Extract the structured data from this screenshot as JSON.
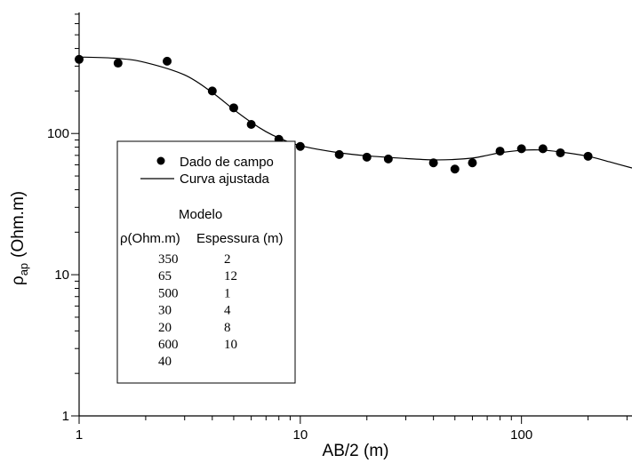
{
  "chart_data": {
    "type": "scatter",
    "xscale": "log",
    "yscale": "log",
    "xlim": [
      1,
      316
    ],
    "ylim": [
      1,
      720
    ],
    "xlabel": "AB/2 (m)",
    "ylabel": {
      "symbol": "ρ",
      "sub": "ap",
      "unit": "(Ohm.m)"
    },
    "x_tick_labels": [
      {
        "value": 1,
        "label": "1"
      },
      {
        "value": 10,
        "label": "10"
      },
      {
        "value": 100,
        "label": "100"
      }
    ],
    "y_tick_labels": [
      {
        "value": 1,
        "label": "1"
      },
      {
        "value": 10,
        "label": "10"
      },
      {
        "value": 100,
        "label": "100"
      }
    ],
    "series": [
      {
        "name": "Dado de campo",
        "style": "filled-circle",
        "points": [
          {
            "x": 1,
            "y": 335
          },
          {
            "x": 1.5,
            "y": 315
          },
          {
            "x": 2.5,
            "y": 325
          },
          {
            "x": 4,
            "y": 200
          },
          {
            "x": 5,
            "y": 152
          },
          {
            "x": 6,
            "y": 116
          },
          {
            "x": 8,
            "y": 91
          },
          {
            "x": 10,
            "y": 81
          },
          {
            "x": 15,
            "y": 71
          },
          {
            "x": 20,
            "y": 68
          },
          {
            "x": 25,
            "y": 66
          },
          {
            "x": 40,
            "y": 62
          },
          {
            "x": 50,
            "y": 56
          },
          {
            "x": 60,
            "y": 62
          },
          {
            "x": 80,
            "y": 75
          },
          {
            "x": 100,
            "y": 78
          },
          {
            "x": 125,
            "y": 78
          },
          {
            "x": 150,
            "y": 73
          },
          {
            "x": 200,
            "y": 69
          }
        ]
      },
      {
        "name": "Curva ajustada",
        "style": "line",
        "points": [
          {
            "x": 1,
            "y": 348
          },
          {
            "x": 1.5,
            "y": 340
          },
          {
            "x": 2,
            "y": 318
          },
          {
            "x": 3,
            "y": 260
          },
          {
            "x": 4,
            "y": 195
          },
          {
            "x": 5,
            "y": 148
          },
          {
            "x": 6,
            "y": 120
          },
          {
            "x": 7,
            "y": 103
          },
          {
            "x": 8,
            "y": 93
          },
          {
            "x": 10,
            "y": 82
          },
          {
            "x": 15,
            "y": 73
          },
          {
            "x": 20,
            "y": 69.5
          },
          {
            "x": 30,
            "y": 66.5
          },
          {
            "x": 40,
            "y": 65
          },
          {
            "x": 50,
            "y": 65.5
          },
          {
            "x": 60,
            "y": 67
          },
          {
            "x": 70,
            "y": 70
          },
          {
            "x": 80,
            "y": 73
          },
          {
            "x": 100,
            "y": 76
          },
          {
            "x": 120,
            "y": 76.5
          },
          {
            "x": 150,
            "y": 74
          },
          {
            "x": 200,
            "y": 69
          },
          {
            "x": 250,
            "y": 63
          },
          {
            "x": 316,
            "y": 57
          }
        ]
      }
    ],
    "legend": {
      "placement": "lower-left",
      "entries": [
        {
          "label": "Dado de campo",
          "style": "filled-circle"
        },
        {
          "label": "Curva ajustada",
          "style": "line"
        }
      ],
      "model": {
        "title": "Modelo",
        "headers": [
          "ρ(Ohm.m)",
          "Espessura (m)"
        ],
        "rows": [
          [
            "350",
            "2"
          ],
          [
            "65",
            "12"
          ],
          [
            "500",
            "1"
          ],
          [
            "30",
            "4"
          ],
          [
            "20",
            "8"
          ],
          [
            "600",
            "10"
          ],
          [
            "40",
            ""
          ]
        ]
      }
    }
  }
}
